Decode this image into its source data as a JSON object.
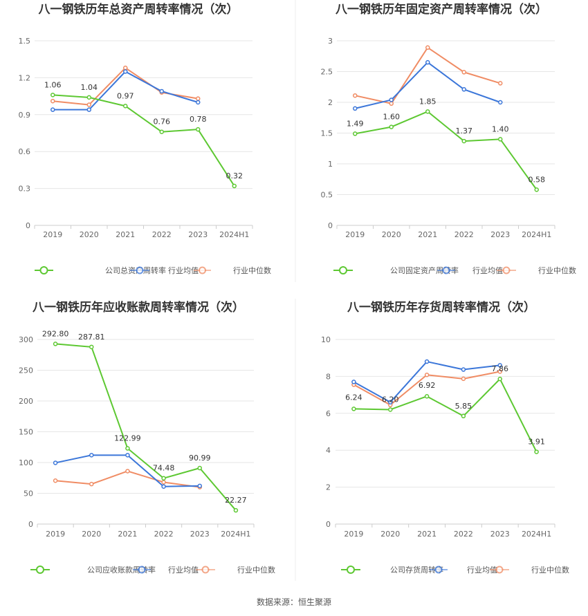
{
  "source_text": "数据来源：恒生聚源",
  "colors": {
    "company": "#5dc832",
    "avg": "#3b76d9",
    "median": "#f08c64",
    "grid": "#e6e6e6",
    "axis": "#cccccc"
  },
  "chart_data": [
    {
      "type": "line",
      "title": "八一钢铁历年总资产周转率情况（次）",
      "categories": [
        "2019",
        "2020",
        "2021",
        "2022",
        "2023",
        "2024H1"
      ],
      "y_ticks": [
        "0",
        "0.3",
        "0.6",
        "0.9",
        "1.2",
        "1.5"
      ],
      "ylim": [
        0,
        1.5
      ],
      "series": [
        {
          "name": "公司总资产周转率",
          "values": [
            1.06,
            1.04,
            0.97,
            0.76,
            0.78,
            0.32
          ],
          "labels": [
            "1.06",
            "1.04",
            "0.97",
            "0.76",
            "0.78",
            "0.32"
          ]
        },
        {
          "name": "行业均值",
          "values": [
            0.94,
            0.94,
            1.25,
            1.09,
            1.0,
            null
          ]
        },
        {
          "name": "行业中位数",
          "values": [
            1.01,
            0.98,
            1.28,
            1.08,
            1.03,
            null
          ]
        }
      ]
    },
    {
      "type": "line",
      "title": "八一钢铁历年固定资产周转率情况（次）",
      "categories": [
        "2019",
        "2020",
        "2021",
        "2022",
        "2023",
        "2024H1"
      ],
      "y_ticks": [
        "0",
        "0.5",
        "1",
        "1.5",
        "2",
        "2.5",
        "3"
      ],
      "ylim": [
        0,
        3
      ],
      "series": [
        {
          "name": "公司固定资产周转率",
          "values": [
            1.49,
            1.6,
            1.85,
            1.37,
            1.4,
            0.58
          ],
          "labels": [
            "1.49",
            "1.60",
            "1.85",
            "1.37",
            "1.40",
            "0.58"
          ]
        },
        {
          "name": "行业均值",
          "values": [
            1.9,
            2.04,
            2.65,
            2.21,
            2.0,
            null
          ]
        },
        {
          "name": "行业中位数",
          "values": [
            2.11,
            1.98,
            2.89,
            2.49,
            2.31,
            null
          ]
        }
      ]
    },
    {
      "type": "line",
      "title": "八一钢铁历年应收账款周转率情况（次）",
      "categories": [
        "2019",
        "2020",
        "2021",
        "2022",
        "2023",
        "2024H1"
      ],
      "y_ticks": [
        "0",
        "50",
        "100",
        "150",
        "200",
        "250",
        "300"
      ],
      "ylim": [
        0,
        300
      ],
      "series": [
        {
          "name": "公司应收账款周转率",
          "values": [
            292.8,
            287.81,
            122.99,
            74.48,
            90.99,
            22.27
          ],
          "labels": [
            "292.80",
            "287.81",
            "122.99",
            "74.48",
            "90.99",
            "22.27"
          ]
        },
        {
          "name": "行业均值",
          "values": [
            99.5,
            112.0,
            112.0,
            61.0,
            62.0,
            null
          ]
        },
        {
          "name": "行业中位数",
          "values": [
            70.5,
            65.0,
            86.0,
            68.0,
            60.0,
            null
          ]
        }
      ]
    },
    {
      "type": "line",
      "title": "八一钢铁历年存货周转率情况（次）",
      "categories": [
        "2019",
        "2020",
        "2021",
        "2022",
        "2023",
        "2024H1"
      ],
      "y_ticks": [
        "0",
        "2",
        "4",
        "6",
        "8",
        "10"
      ],
      "ylim": [
        0,
        10
      ],
      "series": [
        {
          "name": "公司存货周转率",
          "values": [
            6.24,
            6.2,
            6.92,
            5.85,
            7.86,
            3.91
          ],
          "labels": [
            "6.24",
            "6.20",
            "6.92",
            "5.85",
            "7.86",
            "3.91"
          ]
        },
        {
          "name": "行业均值",
          "values": [
            7.7,
            6.6,
            8.8,
            8.37,
            8.6,
            null
          ]
        },
        {
          "name": "行业中位数",
          "values": [
            7.55,
            6.45,
            8.08,
            7.87,
            8.26,
            null
          ]
        }
      ]
    }
  ]
}
